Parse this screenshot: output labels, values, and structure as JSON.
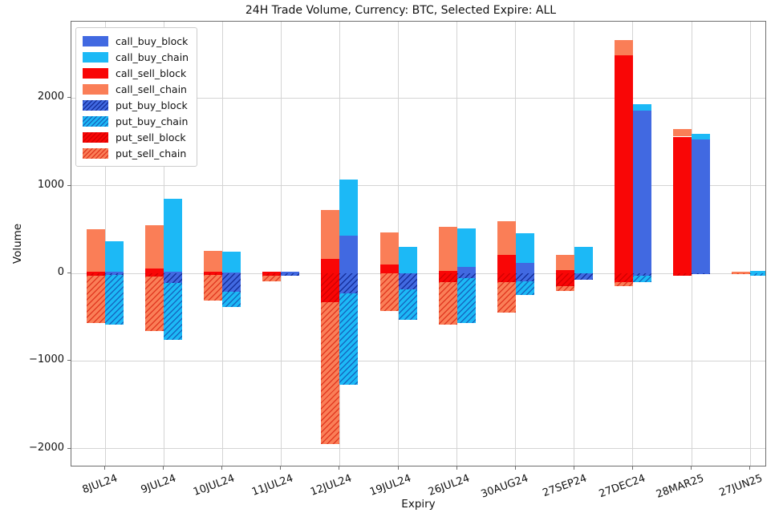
{
  "chart_data": {
    "type": "bar",
    "stacked": true,
    "grouped": true,
    "title": "24H Trade Volume, Currency: BTC, Selected Expire: ALL",
    "xlabel": "Expiry",
    "ylabel": "Volume",
    "grid": true,
    "legend_position": "upper-left",
    "categories": [
      "8JUL24",
      "9JUL24",
      "10JUL24",
      "11JUL24",
      "12JUL24",
      "19JUL24",
      "26JUL24",
      "30AUG24",
      "27SEP24",
      "27DEC24",
      "28MAR25",
      "27JUN25"
    ],
    "yticks": [
      -2000,
      -1000,
      0,
      1000,
      2000
    ],
    "ylim": [
      -2214,
      2873
    ],
    "bar_groups": [
      "sell",
      "buy"
    ],
    "series": [
      {
        "name": "call_buy_block",
        "bar": "buy",
        "sign": "pos",
        "color": "#4169E1",
        "hatch": false,
        "hatch_color": null,
        "values": [
          15,
          15,
          10,
          20,
          430,
          0,
          75,
          115,
          0,
          1860,
          1525,
          0
        ]
      },
      {
        "name": "call_buy_chain",
        "bar": "buy",
        "sign": "pos",
        "color": "#1CB9F6",
        "hatch": false,
        "hatch_color": null,
        "values": [
          350,
          840,
          235,
          0,
          640,
          300,
          435,
          345,
          300,
          70,
          65,
          30
        ]
      },
      {
        "name": "call_sell_block",
        "bar": "sell",
        "sign": "pos",
        "color": "#F90606",
        "hatch": false,
        "hatch_color": null,
        "values": [
          20,
          55,
          20,
          15,
          165,
          100,
          25,
          215,
          40,
          2490,
          1560,
          0
        ]
      },
      {
        "name": "call_sell_chain",
        "bar": "sell",
        "sign": "pos",
        "color": "#FA7E57",
        "hatch": false,
        "hatch_color": null,
        "values": [
          480,
          490,
          240,
          0,
          555,
          365,
          505,
          380,
          175,
          170,
          85,
          15
        ]
      },
      {
        "name": "put_buy_block",
        "bar": "buy",
        "sign": "neg",
        "color": "#4169E1",
        "hatch": true,
        "hatch_color": "#16309C",
        "values": [
          -20,
          -110,
          -210,
          -25,
          -230,
          -185,
          -55,
          -90,
          -75,
          -30,
          -10,
          0
        ]
      },
      {
        "name": "put_buy_chain",
        "bar": "buy",
        "sign": "neg",
        "color": "#1CB9F6",
        "hatch": true,
        "hatch_color": "#1568C0",
        "values": [
          -565,
          -650,
          -170,
          0,
          -1040,
          -350,
          -510,
          -155,
          0,
          -70,
          0,
          -25
        ]
      },
      {
        "name": "put_sell_block",
        "bar": "sell",
        "sign": "neg",
        "color": "#F90606",
        "hatch": true,
        "hatch_color": "#D40000",
        "values": [
          -30,
          -40,
          -15,
          -25,
          -330,
          0,
          -105,
          -105,
          -145,
          -100,
          -25,
          0
        ]
      },
      {
        "name": "put_sell_chain",
        "bar": "sell",
        "sign": "neg",
        "color": "#FA7E57",
        "hatch": true,
        "hatch_color": "#E23A22",
        "values": [
          -535,
          -615,
          -300,
          -65,
          -1620,
          -430,
          -480,
          -345,
          -55,
          -50,
          0,
          -10
        ]
      }
    ],
    "colors": {
      "grid": "#d4d4d4",
      "spine": "#6e6e6e",
      "background": "#ffffff",
      "text": "#111111"
    }
  }
}
